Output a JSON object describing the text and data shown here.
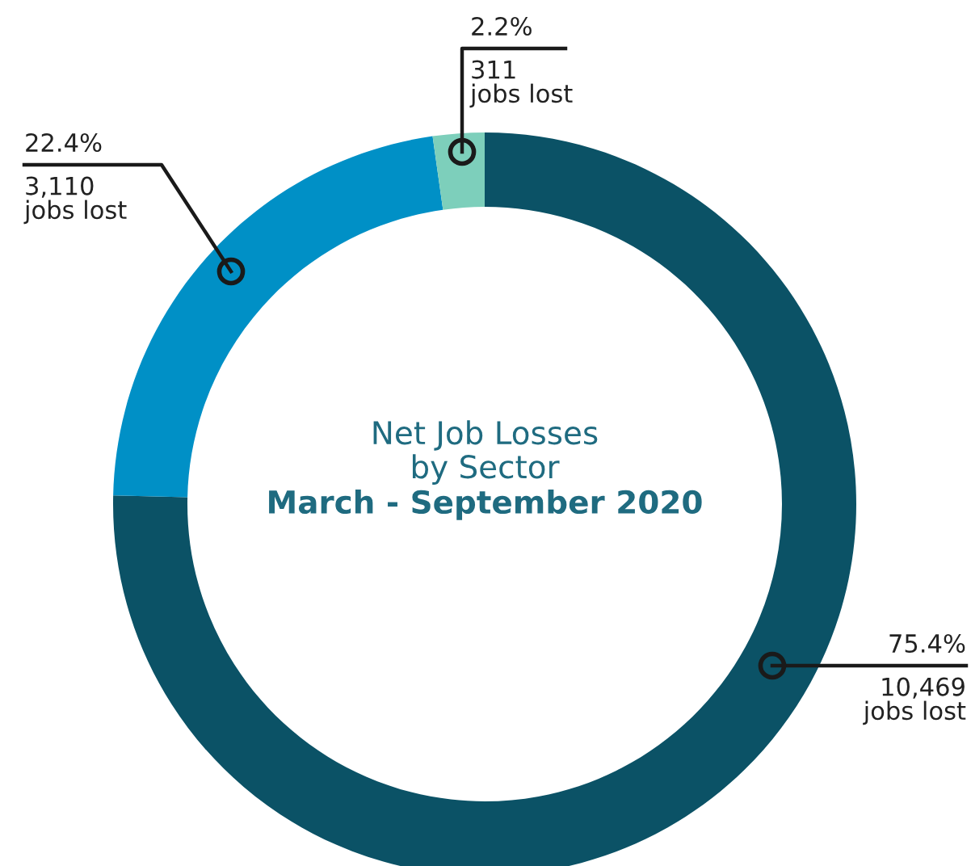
{
  "chart_data": {
    "type": "donut",
    "title": "Net Job Losses\nby Sector",
    "subtitle": "March - September 2020",
    "categories": [
      null,
      null,
      null
    ],
    "values": [
      10469,
      3110,
      311
    ],
    "colors": [
      "#0b5266",
      "#0090c6",
      "#7dcfbb"
    ],
    "value_labels": [
      "75.4%\n10,469\njobs lost",
      "22.4%\n3,110\njobs lost",
      "2.2%\n311\njobs lost"
    ]
  }
}
